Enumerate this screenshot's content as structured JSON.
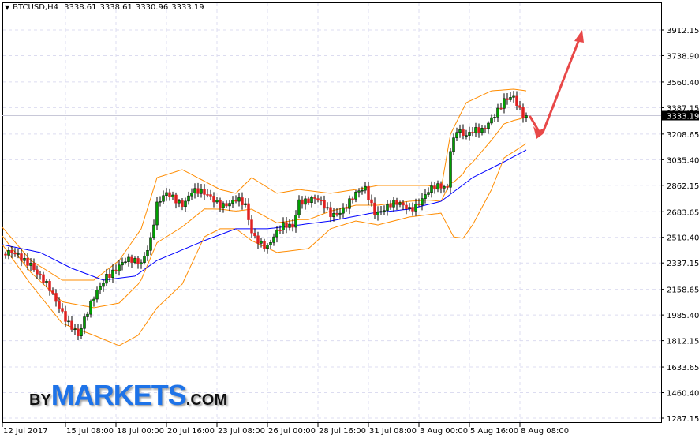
{
  "header": {
    "symbol": "BTCUSD,H4",
    "open": "3338.61",
    "high": "3338.61",
    "low": "3330.96",
    "close": "3333.19"
  },
  "logo": {
    "by": "BY",
    "markets": "MARKETS",
    "com": ".COM"
  },
  "colors": {
    "bull": "#00a000",
    "bear": "#e02020",
    "wick": "#000000",
    "bollinger": "#ff8c00",
    "ma": "#0000ff",
    "arrow": "#e84848",
    "grid": "#dcdcf0"
  },
  "chart_data": {
    "type": "candlestick",
    "symbol": "BTCUSD",
    "timeframe": "H4",
    "last_price": "3333.19",
    "y_ticks": [
      "3912.15",
      "3738.90",
      "3560.40",
      "3387.15",
      "3208.65",
      "3035.40",
      "2862.15",
      "2683.65",
      "2510.40",
      "2337.15",
      "2158.65",
      "1985.40",
      "1812.15",
      "1633.65",
      "1460.40",
      "1287.15"
    ],
    "x_ticks": [
      {
        "label": "12 Jul 2017",
        "t": "2017-07-12T00:00"
      },
      {
        "label": "15 Jul 08:00",
        "t": "2017-07-15T08:00"
      },
      {
        "label": "18 Jul 00:00",
        "t": "2017-07-18T00:00"
      },
      {
        "label": "20 Jul 16:00",
        "t": "2017-07-20T16:00"
      },
      {
        "label": "23 Jul 08:00",
        "t": "2017-07-23T08:00"
      },
      {
        "label": "26 Jul 00:00",
        "t": "2017-07-26T00:00"
      },
      {
        "label": "28 Jul 16:00",
        "t": "2017-07-28T16:00"
      },
      {
        "label": "31 Jul 08:00",
        "t": "2017-07-31T08:00"
      },
      {
        "label": "3 Aug 00:00",
        "t": "2017-08-03T00:00"
      },
      {
        "label": "5 Aug 16:00",
        "t": "2017-08-05T16:00"
      },
      {
        "label": "8 Aug 08:00",
        "t": "2017-08-08T08:00"
      }
    ],
    "ylim": [
      1287.15,
      3912.15
    ],
    "grid": true,
    "close_path": [
      [
        "2017-07-12T00:00",
        2397
      ],
      [
        "2017-07-13T12:00",
        2354
      ],
      [
        "2017-07-14T00:00",
        2248
      ],
      [
        "2017-07-14T20:00",
        2061
      ],
      [
        "2017-07-15T20:00",
        1901
      ],
      [
        "2017-07-16T00:00",
        1848
      ],
      [
        "2017-07-16T12:00",
        1981
      ],
      [
        "2017-07-17T00:00",
        2141
      ],
      [
        "2017-07-17T12:00",
        2274
      ],
      [
        "2017-07-18T12:00",
        2328
      ],
      [
        "2017-07-19T08:00",
        2354
      ],
      [
        "2017-07-19T20:00",
        2514
      ],
      [
        "2017-07-20T04:00",
        2728
      ],
      [
        "2017-07-20T16:00",
        2781
      ],
      [
        "2017-07-21T12:00",
        2754
      ],
      [
        "2017-07-22T00:00",
        2834
      ],
      [
        "2017-07-22T16:00",
        2781
      ],
      [
        "2017-07-23T12:00",
        2754
      ],
      [
        "2017-07-24T08:00",
        2754
      ],
      [
        "2017-07-24T20:00",
        2701
      ],
      [
        "2017-07-25T04:00",
        2541
      ],
      [
        "2017-07-26T00:00",
        2461
      ],
      [
        "2017-07-26T20:00",
        2568
      ],
      [
        "2017-07-27T08:00",
        2594
      ],
      [
        "2017-07-27T16:00",
        2781
      ],
      [
        "2017-07-28T12:00",
        2754
      ],
      [
        "2017-07-29T08:00",
        2674
      ],
      [
        "2017-07-30T04:00",
        2728
      ],
      [
        "2017-07-31T04:00",
        2834
      ],
      [
        "2017-07-31T16:00",
        2701
      ],
      [
        "2017-08-01T16:00",
        2717
      ],
      [
        "2017-08-02T12:00",
        2717
      ],
      [
        "2017-08-03T12:00",
        2808
      ],
      [
        "2017-08-04T12:00",
        2861
      ],
      [
        "2017-08-04T16:00",
        3128
      ],
      [
        "2017-08-05T00:00",
        3261
      ],
      [
        "2017-08-05T12:00",
        3181
      ],
      [
        "2017-08-06T08:00",
        3234
      ],
      [
        "2017-08-06T20:00",
        3341
      ],
      [
        "2017-08-07T12:00",
        3421
      ],
      [
        "2017-08-08T00:00",
        3432
      ],
      [
        "2017-08-08T08:00",
        3368
      ],
      [
        "2017-08-08T16:00",
        3333.19
      ]
    ],
    "moving_average": [
      [
        "2017-07-12T00:00",
        2461
      ],
      [
        "2017-07-14T00:00",
        2408
      ],
      [
        "2017-07-15T16:00",
        2301
      ],
      [
        "2017-07-17T08:00",
        2221
      ],
      [
        "2017-07-19T00:00",
        2248
      ],
      [
        "2017-07-20T04:00",
        2354
      ],
      [
        "2017-07-22T16:00",
        2488
      ],
      [
        "2017-07-24T08:00",
        2568
      ],
      [
        "2017-07-26T00:00",
        2568
      ],
      [
        "2017-07-27T16:00",
        2594
      ],
      [
        "2017-07-29T08:00",
        2621
      ],
      [
        "2017-07-31T12:00",
        2674
      ],
      [
        "2017-08-02T12:00",
        2701
      ],
      [
        "2017-08-04T04:00",
        2754
      ],
      [
        "2017-08-05T20:00",
        2914
      ],
      [
        "2017-08-07T12:00",
        3021
      ],
      [
        "2017-08-08T16:00",
        3101
      ]
    ],
    "bollinger_upper": [
      [
        "2017-07-12T00:00",
        2578
      ],
      [
        "2017-07-13T12:00",
        2354
      ],
      [
        "2017-07-15T04:00",
        2221
      ],
      [
        "2017-07-16T20:00",
        2221
      ],
      [
        "2017-07-18T04:00",
        2354
      ],
      [
        "2017-07-19T08:00",
        2568
      ],
      [
        "2017-07-20T04:00",
        2914
      ],
      [
        "2017-07-21T12:00",
        2968
      ],
      [
        "2017-07-23T12:00",
        2834
      ],
      [
        "2017-07-24T08:00",
        2808
      ],
      [
        "2017-07-25T04:00",
        2914
      ],
      [
        "2017-07-26T12:00",
        2808
      ],
      [
        "2017-07-27T16:00",
        2834
      ],
      [
        "2017-07-29T08:00",
        2808
      ],
      [
        "2017-07-30T16:00",
        2834
      ],
      [
        "2017-07-31T20:00",
        2861
      ],
      [
        "2017-08-03T12:00",
        2861
      ],
      [
        "2017-08-04T04:00",
        2834
      ],
      [
        "2017-08-04T16:00",
        3208
      ],
      [
        "2017-08-05T12:00",
        3421
      ],
      [
        "2017-08-06T20:00",
        3501
      ],
      [
        "2017-08-08T00:00",
        3512
      ],
      [
        "2017-08-08T16:00",
        3501
      ]
    ],
    "bollinger_lower": [
      [
        "2017-07-12T00:00",
        2461
      ],
      [
        "2017-07-13T12:00",
        2194
      ],
      [
        "2017-07-15T04:00",
        1928
      ],
      [
        "2017-07-16T20:00",
        1848
      ],
      [
        "2017-07-18T04:00",
        1778
      ],
      [
        "2017-07-19T04:00",
        1848
      ],
      [
        "2017-07-20T04:00",
        2034
      ],
      [
        "2017-07-21T12:00",
        2194
      ],
      [
        "2017-07-22T16:00",
        2514
      ],
      [
        "2017-07-23T12:00",
        2568
      ],
      [
        "2017-07-24T08:00",
        2568
      ],
      [
        "2017-07-25T04:00",
        2488
      ],
      [
        "2017-07-26T12:00",
        2408
      ],
      [
        "2017-07-28T04:00",
        2434
      ],
      [
        "2017-07-29T08:00",
        2568
      ],
      [
        "2017-07-30T16:00",
        2621
      ],
      [
        "2017-07-31T20:00",
        2594
      ],
      [
        "2017-08-02T12:00",
        2648
      ],
      [
        "2017-08-04T04:00",
        2674
      ],
      [
        "2017-08-04T20:00",
        2514
      ],
      [
        "2017-08-05T08:00",
        2504
      ],
      [
        "2017-08-05T20:00",
        2594
      ],
      [
        "2017-08-06T20:00",
        2834
      ],
      [
        "2017-08-07T12:00",
        3048
      ],
      [
        "2017-08-08T16:00",
        3144
      ]
    ],
    "annotation": "red arrow: dip then rise"
  }
}
